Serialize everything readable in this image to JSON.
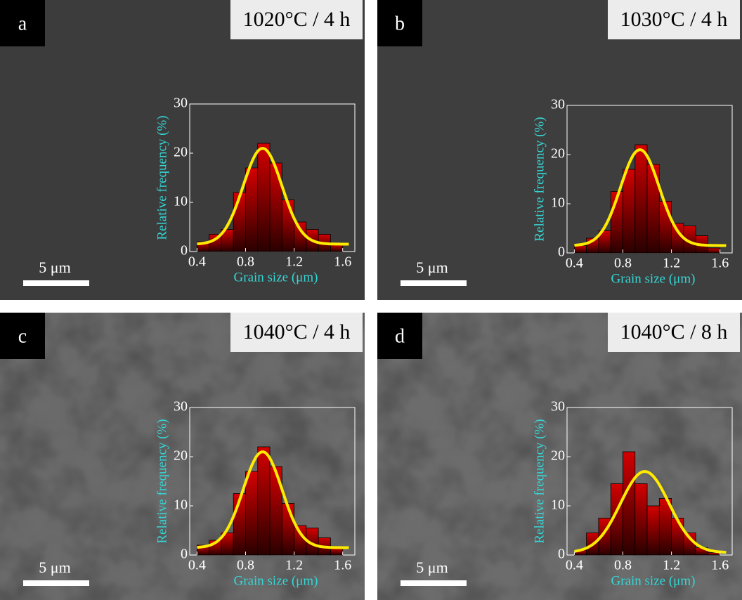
{
  "chart_data": [
    {
      "type": "histogram",
      "label": "a",
      "title": "1020°C / 4 h",
      "scale_bar": "5 μm",
      "xlabel": "Grain size (μm)",
      "ylabel": "Relative frequency (%)",
      "bins": [
        0.4,
        0.5,
        0.6,
        0.7,
        0.8,
        0.9,
        1.0,
        1.1,
        1.2,
        1.3,
        1.4,
        1.5,
        1.6
      ],
      "values": [
        2,
        3.5,
        4.5,
        12,
        17,
        22,
        18,
        10.5,
        6,
        4.5,
        3.5,
        1.5
      ],
      "fit": {
        "center": 0.94,
        "width": 0.16,
        "peak": 19.5,
        "base": 1.5
      },
      "xlim": [
        0.34,
        1.7
      ],
      "ylim": [
        0,
        30
      ],
      "xticks": [
        0.4,
        0.8,
        1.2,
        1.6
      ],
      "yticks": [
        0,
        10,
        20,
        30
      ],
      "bar_color": "#b00000",
      "fit_color": "#ffeb00"
    },
    {
      "type": "histogram",
      "label": "b",
      "title": "1030°C / 4 h",
      "scale_bar": "5 μm",
      "xlabel": "Grain size (μm)",
      "ylabel": "Relative frequency (%)",
      "bins": [
        0.4,
        0.5,
        0.6,
        0.7,
        0.8,
        0.9,
        1.0,
        1.1,
        1.2,
        1.3,
        1.4,
        1.5,
        1.6
      ],
      "values": [
        1.5,
        3,
        4.5,
        12.5,
        17,
        22,
        18,
        10.5,
        6,
        5.5,
        3.5,
        1
      ],
      "fit": {
        "center": 0.94,
        "width": 0.16,
        "peak": 19.5,
        "base": 1.5
      },
      "xlim": [
        0.34,
        1.7
      ],
      "ylim": [
        0,
        30
      ],
      "xticks": [
        0.4,
        0.8,
        1.2,
        1.6
      ],
      "yticks": [
        0,
        10,
        20,
        30
      ],
      "bar_color": "#b00000",
      "fit_color": "#ffeb00"
    },
    {
      "type": "histogram",
      "label": "c",
      "title": "1040°C / 4 h",
      "scale_bar": "5 μm",
      "xlabel": "Grain size (μm)",
      "ylabel": "Relative frequency (%)",
      "bins": [
        0.4,
        0.5,
        0.6,
        0.7,
        0.8,
        0.9,
        1.0,
        1.1,
        1.2,
        1.3,
        1.4,
        1.5,
        1.6
      ],
      "values": [
        2,
        3,
        4.5,
        12.5,
        17,
        22,
        18,
        10.5,
        6,
        5.5,
        3.5,
        1.5
      ],
      "fit": {
        "center": 0.94,
        "width": 0.16,
        "peak": 19.5,
        "base": 1.5
      },
      "xlim": [
        0.34,
        1.7
      ],
      "ylim": [
        0,
        30
      ],
      "xticks": [
        0.4,
        0.8,
        1.2,
        1.6
      ],
      "yticks": [
        0,
        10,
        20,
        30
      ],
      "bar_color": "#b00000",
      "fit_color": "#ffeb00"
    },
    {
      "type": "histogram",
      "label": "d",
      "title": "1040°C / 8 h",
      "scale_bar": "5 μm",
      "xlabel": "Grain size (μm)",
      "ylabel": "Relative frequency (%)",
      "bins": [
        0.4,
        0.5,
        0.6,
        0.7,
        0.8,
        0.9,
        1.0,
        1.1,
        1.2,
        1.3,
        1.4,
        1.5,
        1.6
      ],
      "values": [
        1,
        4.5,
        7.5,
        14.5,
        21,
        14.5,
        10,
        11.5,
        7.5,
        4.5,
        1.5,
        0.5
      ],
      "fit": {
        "center": 0.98,
        "width": 0.2,
        "peak": 16.5,
        "base": 0.5
      },
      "xlim": [
        0.34,
        1.7
      ],
      "ylim": [
        0,
        30
      ],
      "xticks": [
        0.4,
        0.8,
        1.2,
        1.6
      ],
      "yticks": [
        0,
        10,
        20,
        30
      ],
      "bar_color": "#b00000",
      "fit_color": "#ffeb00"
    }
  ]
}
